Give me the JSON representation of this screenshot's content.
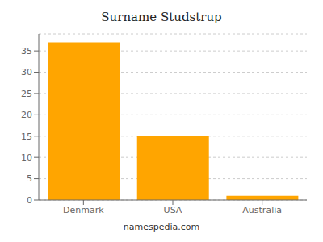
{
  "chart_data": {
    "type": "bar",
    "title": "Surname Studstrup",
    "categories": [
      "Denmark",
      "USA",
      "Australia"
    ],
    "values": [
      37,
      15,
      1
    ],
    "color": "#FFA500",
    "ylim": [
      0,
      39
    ],
    "yticks": [
      0,
      5,
      10,
      15,
      20,
      25,
      30,
      35
    ],
    "grid": true,
    "annotations": [
      "namespedia.com"
    ]
  }
}
